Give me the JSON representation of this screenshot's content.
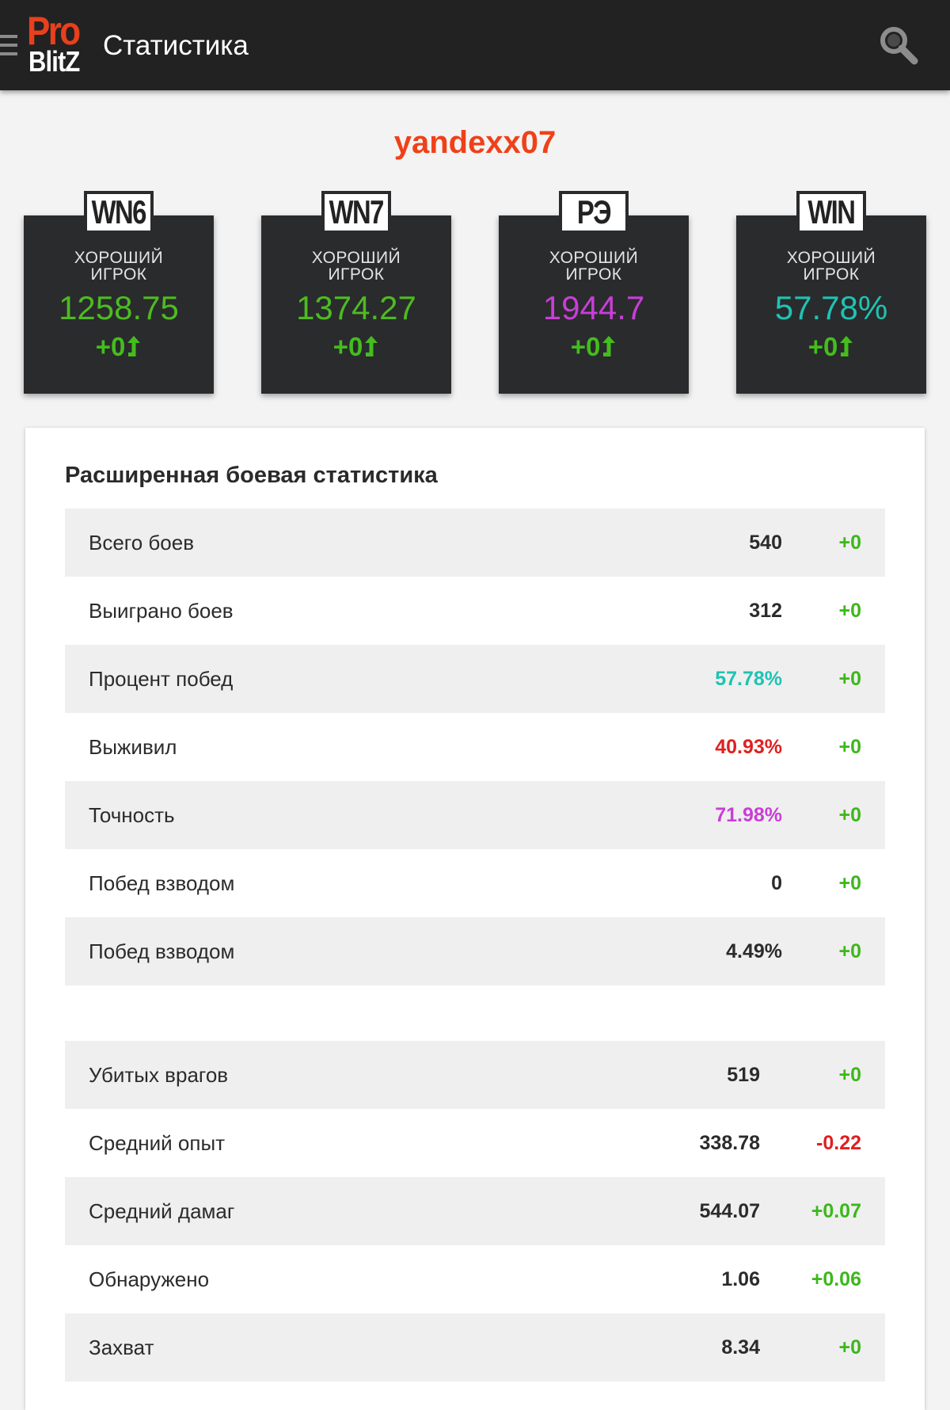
{
  "header": {
    "logo_line1": "Pro",
    "logo_line2": "BlitZ",
    "title": "Статистика"
  },
  "player": {
    "name": "yandexx07"
  },
  "colors": {
    "topbar": "#222222",
    "player_name": "#ef4119",
    "green": "#3cb81a",
    "teal": "#1fc3b2",
    "magenta": "#c93ed7",
    "red": "#e02020"
  },
  "ratings": [
    {
      "badge": "WN6",
      "label_line1": "ХОРОШИЙ",
      "label_line2": "ИГРОК",
      "value": "1258.75",
      "value_color": "#4dbb21",
      "delta": "+0"
    },
    {
      "badge": "WN7",
      "label_line1": "ХОРОШИЙ",
      "label_line2": "ИГРОК",
      "value": "1374.27",
      "value_color": "#4dbb21",
      "delta": "+0"
    },
    {
      "badge": "РЭ",
      "label_line1": "ХОРОШИЙ",
      "label_line2": "ИГРОК",
      "value": "1944.7",
      "value_color": "#c93ed7",
      "delta": "+0"
    },
    {
      "badge": "WIN",
      "label_line1": "ХОРОШИЙ",
      "label_line2": "ИГРОК",
      "value": "57.78%",
      "value_color": "#1fc3b2",
      "delta": "+0"
    }
  ],
  "stats": {
    "title": "Расширенная боевая статистика",
    "group1": [
      {
        "label": "Всего боев",
        "value": "540",
        "value_color": "#2b2b2b",
        "delta": "+0",
        "delta_color": "#3cb81a"
      },
      {
        "label": "Выиграно боев",
        "value": "312",
        "value_color": "#2b2b2b",
        "delta": "+0",
        "delta_color": "#3cb81a"
      },
      {
        "label": "Процент побед",
        "value": "57.78%",
        "value_color": "#1fc3b2",
        "delta": "+0",
        "delta_color": "#3cb81a"
      },
      {
        "label": "Выживил",
        "value": "40.93%",
        "value_color": "#e02020",
        "delta": "+0",
        "delta_color": "#3cb81a"
      },
      {
        "label": "Точность",
        "value": "71.98%",
        "value_color": "#c93ed7",
        "delta": "+0",
        "delta_color": "#3cb81a"
      },
      {
        "label": "Побед взводом",
        "value": "0",
        "value_color": "#2b2b2b",
        "delta": "+0",
        "delta_color": "#3cb81a"
      },
      {
        "label": "Побед взводом",
        "value": "4.49%",
        "value_color": "#2b2b2b",
        "delta": "+0",
        "delta_color": "#3cb81a"
      }
    ],
    "group2": [
      {
        "label": "Убитых врагов",
        "value": "519",
        "value_color": "#2b2b2b",
        "delta": "+0",
        "delta_color": "#3cb81a"
      },
      {
        "label": "Средний опыт",
        "value": "338.78",
        "value_color": "#2b2b2b",
        "delta": "-0.22",
        "delta_color": "#e02020"
      },
      {
        "label": "Средний дамаг",
        "value": "544.07",
        "value_color": "#2b2b2b",
        "delta": "+0.07",
        "delta_color": "#3cb81a"
      },
      {
        "label": "Обнаружено",
        "value": "1.06",
        "value_color": "#2b2b2b",
        "delta": "+0.06",
        "delta_color": "#3cb81a"
      },
      {
        "label": "Захват",
        "value": "8.34",
        "value_color": "#2b2b2b",
        "delta": "+0",
        "delta_color": "#3cb81a"
      }
    ]
  }
}
